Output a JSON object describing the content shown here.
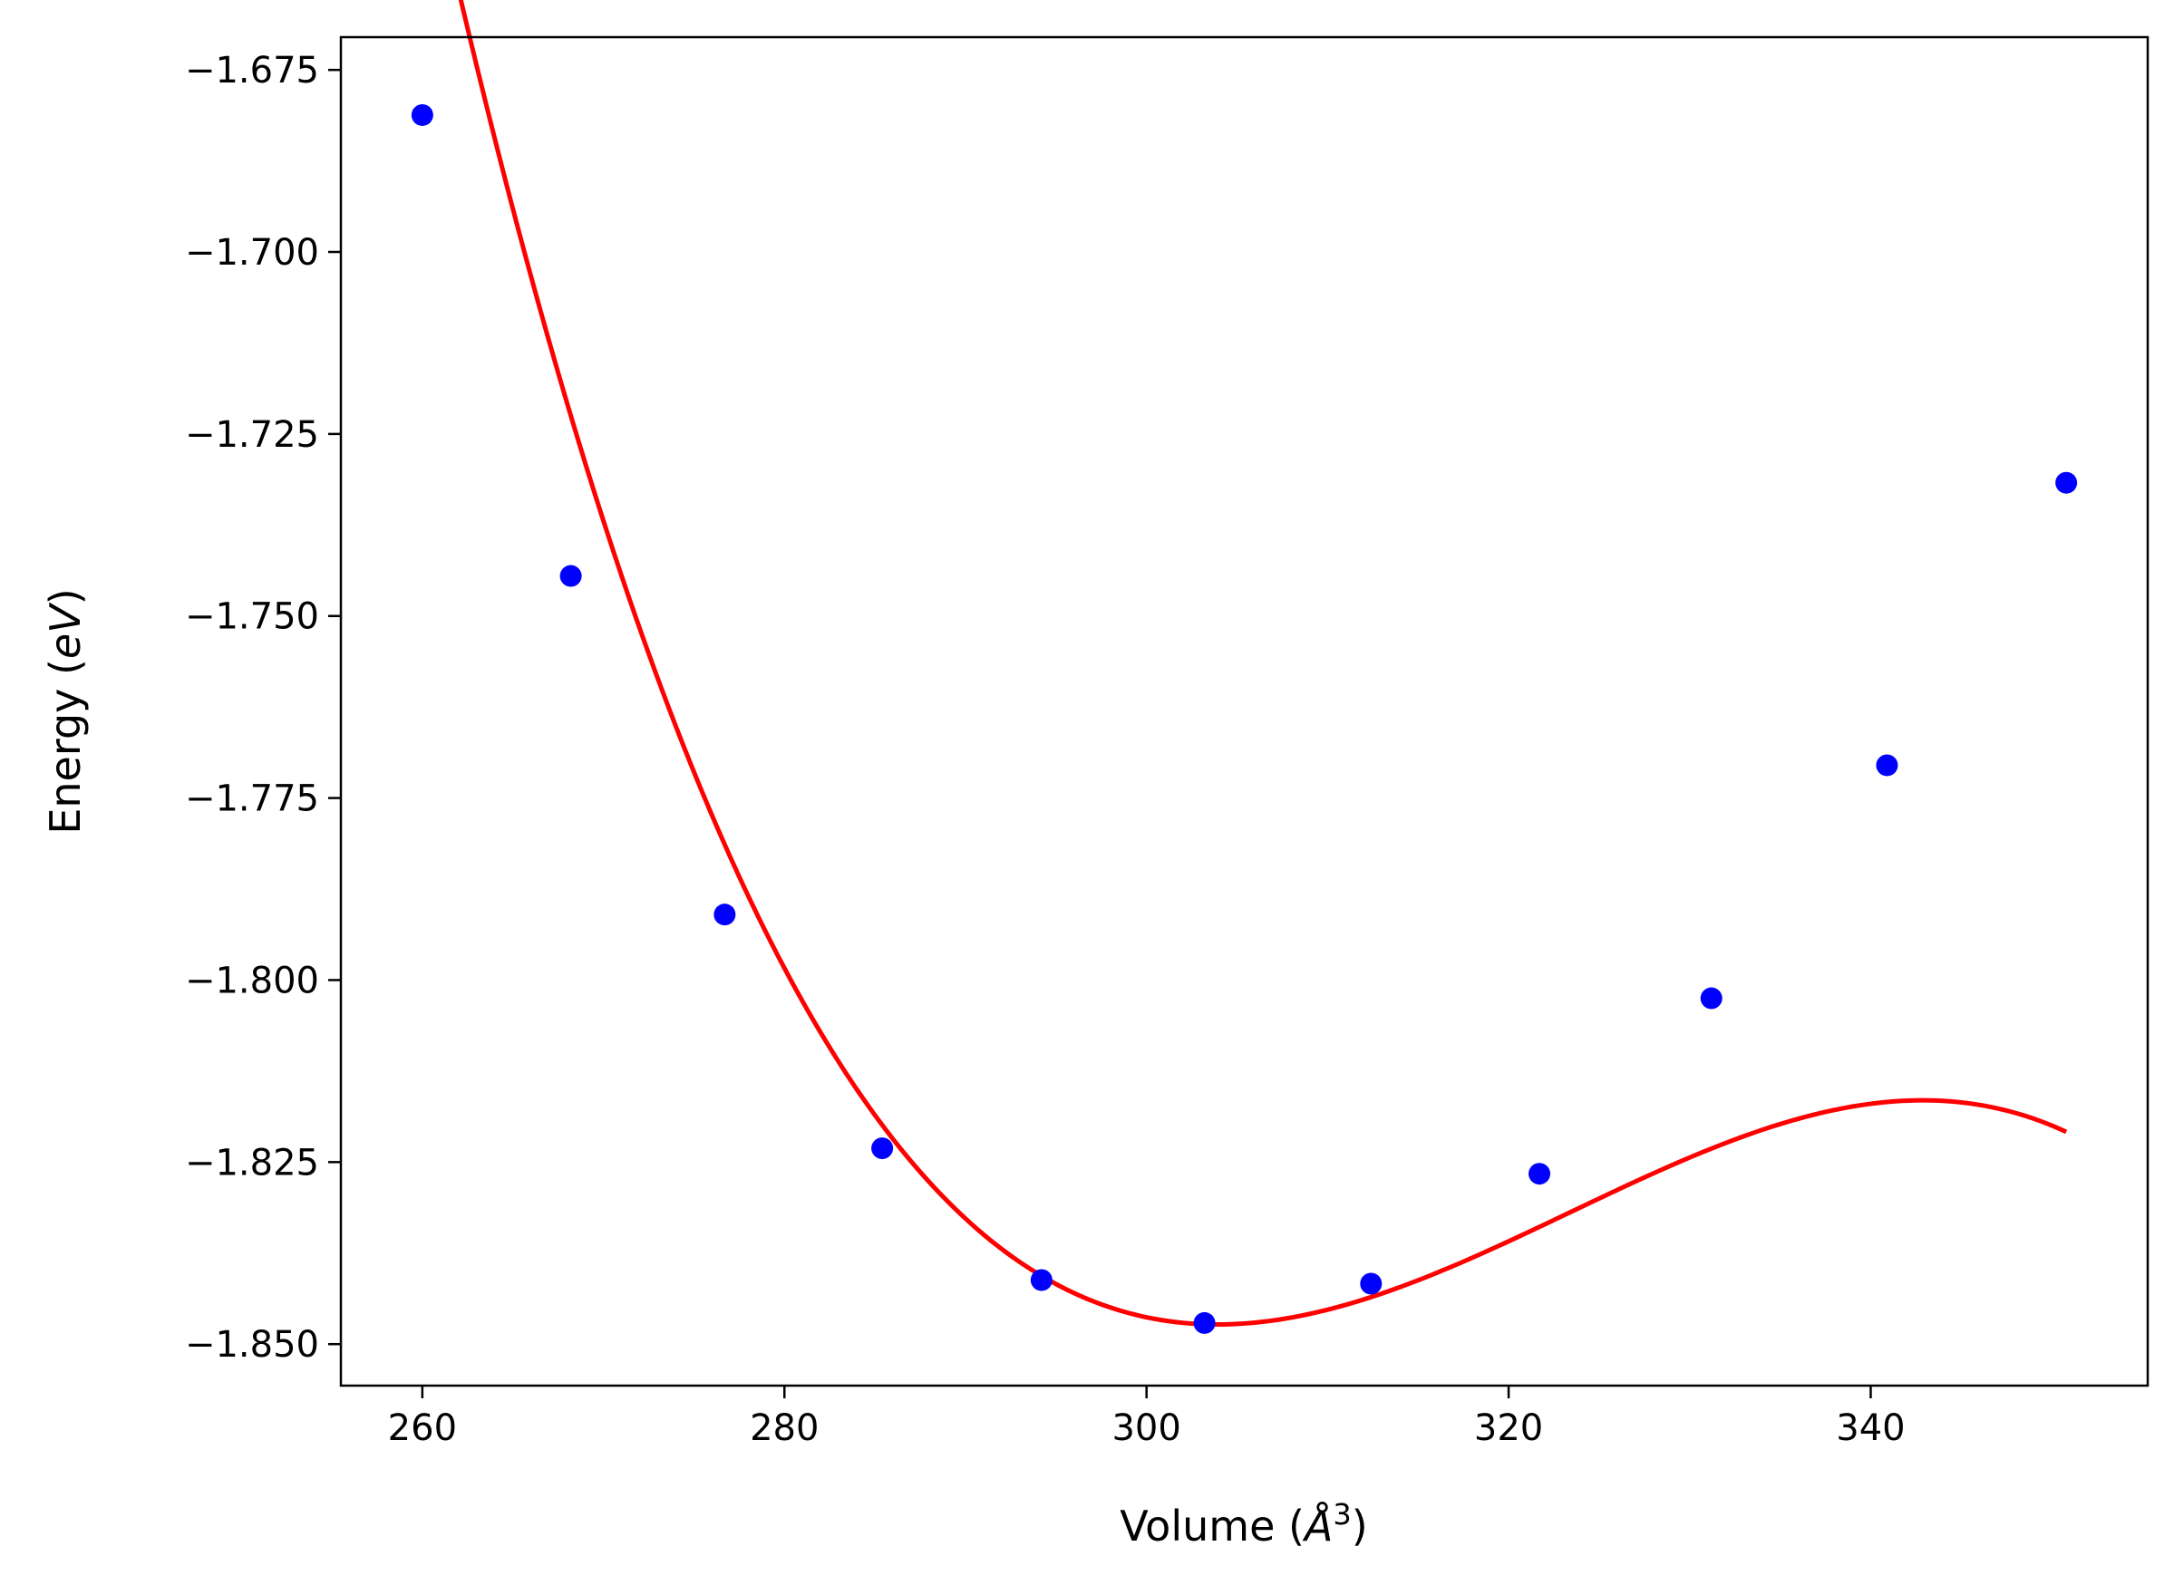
{
  "chart_data": {
    "type": "line",
    "xlabel": "Volume (Å³)",
    "xlabel_parts": {
      "prefix": "Volume (",
      "var": "Å",
      "sup": "3",
      "suffix": ")"
    },
    "ylabel": "Energy (eV)",
    "ylabel_parts": {
      "prefix": "Energy (",
      "var": "eV",
      "suffix": ")"
    },
    "xlim": [
      255.5,
      355.3
    ],
    "ylim": [
      -1.8557,
      -1.6705
    ],
    "xticks": [
      260,
      280,
      300,
      320,
      340
    ],
    "xtick_labels": [
      "260",
      "280",
      "300",
      "320",
      "340"
    ],
    "yticks": [
      -1.675,
      -1.7,
      -1.725,
      -1.75,
      -1.775,
      -1.8,
      -1.825,
      -1.85
    ],
    "ytick_labels": [
      "−1.675",
      "−1.700",
      "−1.725",
      "−1.750",
      "−1.775",
      "−1.800",
      "−1.825",
      "−1.850"
    ],
    "grid": false,
    "series": [
      {
        "kind": "scatter",
        "color": "#0000ff",
        "x": [
          260.0,
          268.2,
          276.7,
          285.4,
          294.2,
          303.2,
          312.4,
          321.7,
          331.2,
          340.9,
          350.8
        ],
        "y": [
          -1.6812,
          -1.7445,
          -1.791,
          -1.8231,
          -1.8412,
          -1.8471,
          -1.8417,
          -1.8266,
          -1.8025,
          -1.7705,
          -1.7317
        ]
      },
      {
        "kind": "fit-line",
        "color": "#ff0000",
        "fit": {
          "E0": -1.8473,
          "V0": 303.9,
          "a": 6.08e-05,
          "b": 1.04e-06
        }
      }
    ]
  }
}
